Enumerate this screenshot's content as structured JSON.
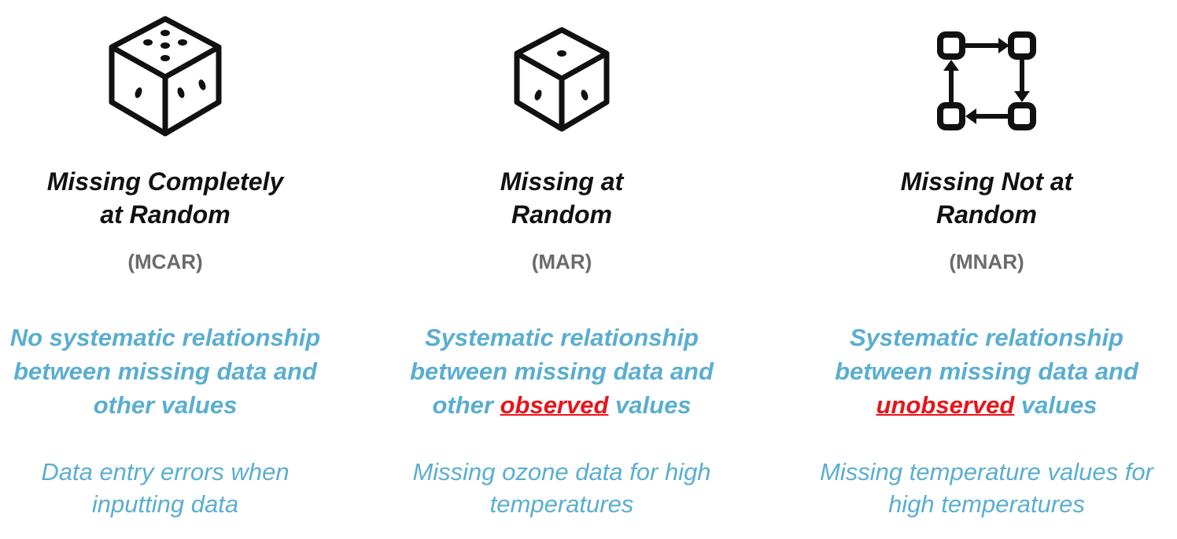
{
  "columns": [
    {
      "icon": "dice-five-icon",
      "title_line1": "Missing Completely",
      "title_line2": "at Random",
      "abbr": "(MCAR)",
      "desc_line1": "No systematic relationship",
      "desc_line2": "between missing data and",
      "desc_line3_pre": "other values",
      "desc_highlight": "",
      "desc_line3_post": "",
      "example_line1": "Data entry errors when",
      "example_line2": "inputting data"
    },
    {
      "icon": "dice-one-icon",
      "title_line1": "Missing at",
      "title_line2": "Random",
      "abbr": "(MAR)",
      "desc_line1": "Systematic relationship",
      "desc_line2": "between missing data and",
      "desc_line3_pre": "other ",
      "desc_highlight": "observed",
      "desc_line3_post": " values",
      "example_line1": "Missing ozone data for high",
      "example_line2": "temperatures"
    },
    {
      "icon": "workflow-cycle-icon",
      "title_line1": "Missing Not at",
      "title_line2": "Random",
      "abbr": "(MNAR)",
      "desc_line1": "Systematic relationship",
      "desc_line2": "between missing data and",
      "desc_line3_pre": "",
      "desc_highlight": "unobserved",
      "desc_line3_post": " values",
      "example_line1": "Missing temperature values for",
      "example_line2": "high temperatures"
    }
  ],
  "colors": {
    "title": "#111111",
    "abbr": "#6b6b6b",
    "accent": "#5aaed0",
    "highlight": "#e8141a"
  }
}
